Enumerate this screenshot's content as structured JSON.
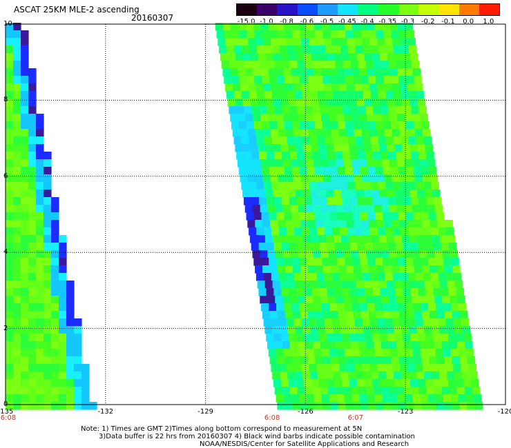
{
  "title": "ASCAT 25KM MLE-2 ascending",
  "date": "20160307",
  "colorbar": {
    "labels": [
      "-15.0",
      "-1.0",
      "-0.8",
      "-0.6",
      "-0.5",
      "-0.45",
      "-0.4",
      "-0.35",
      "-0.3",
      "-0.2",
      "-0.1",
      "0.0",
      "1.0"
    ],
    "colors": [
      "#1a0010",
      "#3a006a",
      "#2a12c8",
      "#0a4cff",
      "#1c9cff",
      "#14e4ff",
      "#00ff80",
      "#22ff2a",
      "#7aff10",
      "#c4ff00",
      "#ffe400",
      "#ff7a00",
      "#ff1a00"
    ]
  },
  "map": {
    "x_ticks": [
      "-135",
      "-132",
      "-129",
      "-126",
      "-123",
      "-120"
    ],
    "y_ticks": [
      "0",
      "2",
      "4",
      "6",
      "8",
      "10"
    ],
    "time_labels": [
      {
        "text": "6:08",
        "lon": -135
      },
      {
        "text": "6:08",
        "lon": -127
      },
      {
        "text": "6:07",
        "lon": -124.5
      }
    ]
  },
  "notes": {
    "line1": "Note: 1) Times are GMT 2)Times along bottom correspond to measurement at 5N",
    "line2": "3)Data buffer is 22 hrs from 20160307 4) Black wind barbs indicate possible contamination",
    "line3": "NOAA/NESDIS/Center for Satellite Applications and Research"
  }
}
